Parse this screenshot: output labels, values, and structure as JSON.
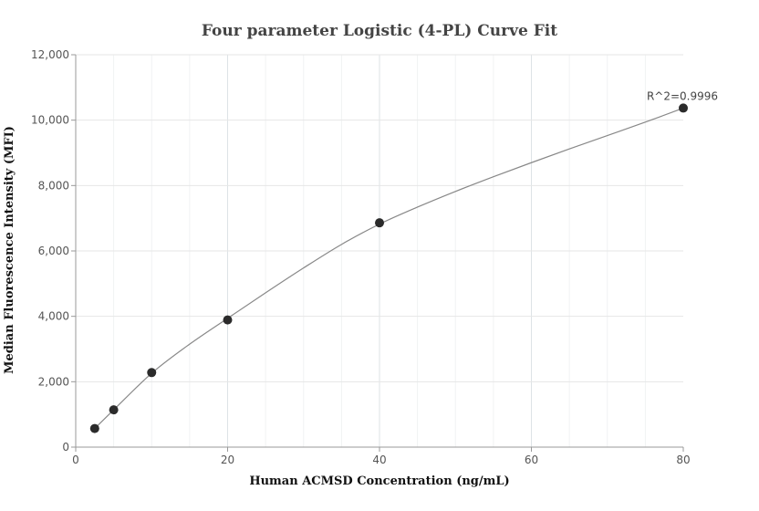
{
  "chart_data": {
    "type": "scatter",
    "title": "Four parameter Logistic (4-PL) Curve Fit",
    "xlabel": "Human ACMSD Concentration (ng/mL)",
    "ylabel": "Median Fluorescence Intensity (MFI)",
    "xlim": [
      0,
      80
    ],
    "ylim": [
      0,
      12000
    ],
    "x_ticks": [
      0,
      20,
      40,
      60,
      80
    ],
    "y_ticks": [
      0,
      2000,
      4000,
      6000,
      8000,
      10000,
      12000
    ],
    "x_tick_labels": [
      "0",
      "20",
      "40",
      "60",
      "80"
    ],
    "y_tick_labels": [
      "0",
      "2,000",
      "4,000",
      "6,000",
      "8,000",
      "10,000",
      "12,000"
    ],
    "grid": true,
    "points": [
      {
        "x": 2.5,
        "y": 570
      },
      {
        "x": 5,
        "y": 1140
      },
      {
        "x": 10,
        "y": 2280
      },
      {
        "x": 20,
        "y": 3890
      },
      {
        "x": 40,
        "y": 6860
      },
      {
        "x": 80,
        "y": 10370
      }
    ],
    "fit_curve": [
      [
        2.5,
        570
      ],
      [
        5,
        1140
      ],
      [
        10,
        2260
      ],
      [
        15,
        3150
      ],
      [
        20,
        3940
      ],
      [
        25,
        4720
      ],
      [
        30,
        5480
      ],
      [
        35,
        6200
      ],
      [
        40,
        6820
      ],
      [
        45,
        7340
      ],
      [
        50,
        7820
      ],
      [
        55,
        8270
      ],
      [
        60,
        8700
      ],
      [
        65,
        9120
      ],
      [
        70,
        9530
      ],
      [
        75,
        9940
      ],
      [
        80,
        10370
      ]
    ],
    "annotation": "R^2=0.9996",
    "colors": {
      "point": "#2b2b2b",
      "curve": "#888888",
      "grid": "#e6e6e6",
      "axis": "#999999"
    }
  }
}
